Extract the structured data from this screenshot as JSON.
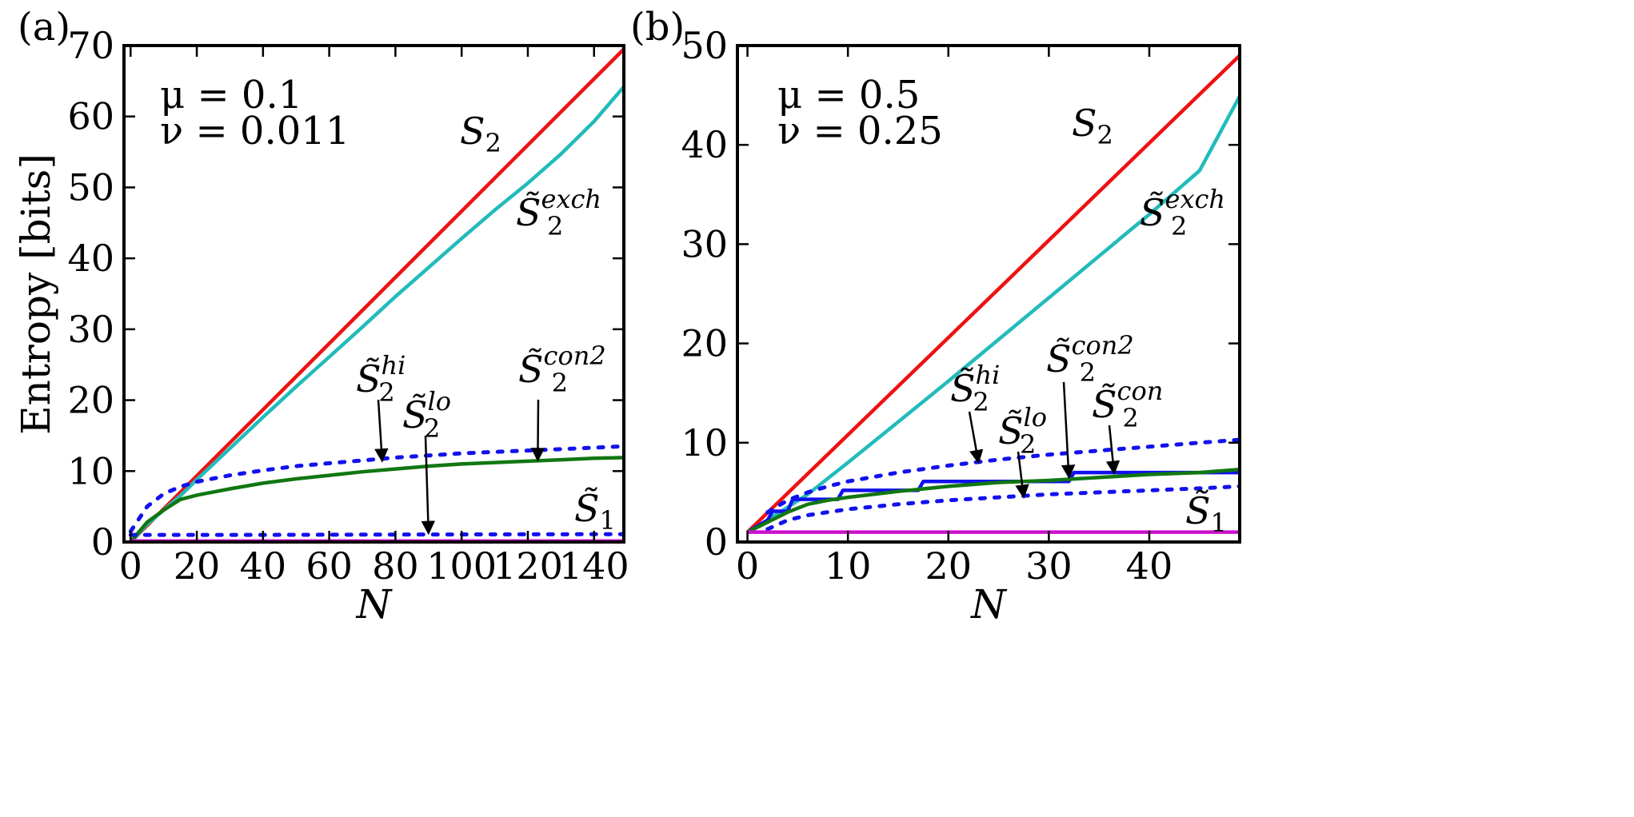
{
  "chart_data": [
    {
      "type": "line",
      "panel_label": "(a)",
      "params": [
        "μ = 0.1",
        "ν = 0.011"
      ],
      "xlabel": "N",
      "ylabel": "Entropy [bits]",
      "xlim": [
        -2,
        149
      ],
      "ylim": [
        0,
        70
      ],
      "xticks": [
        0,
        20,
        40,
        60,
        80,
        100,
        120,
        140
      ],
      "yticks": [
        0,
        10,
        20,
        30,
        40,
        50,
        60,
        70
      ],
      "series": [
        {
          "name": "S2",
          "color": "#ee1111",
          "style": "solid",
          "x": [
            0,
            149
          ],
          "y": [
            0,
            69.5
          ]
        },
        {
          "name": "S2 exch",
          "color": "#22bbbb",
          "style": "solid",
          "x": [
            0,
            5,
            10,
            15,
            20,
            30,
            40,
            50,
            60,
            70,
            80,
            90,
            100,
            110,
            120,
            130,
            140,
            149
          ],
          "y": [
            0,
            2.5,
            4.5,
            6.5,
            8.8,
            13.2,
            17.6,
            21.9,
            26.1,
            30.3,
            34.6,
            38.7,
            42.8,
            46.8,
            50.6,
            54.7,
            59.3,
            64.2
          ]
        },
        {
          "name": "S2 con2",
          "color": "#117711",
          "style": "solid",
          "x": [
            0,
            5,
            10,
            15,
            20,
            30,
            40,
            50,
            60,
            70,
            80,
            90,
            100,
            110,
            120,
            130,
            140,
            149
          ],
          "y": [
            0,
            2.8,
            4.5,
            6.0,
            6.6,
            7.5,
            8.3,
            8.9,
            9.4,
            9.9,
            10.3,
            10.7,
            11.0,
            11.2,
            11.4,
            11.6,
            11.8,
            11.9
          ]
        },
        {
          "name": "S2 hi",
          "color": "#1111ee",
          "style": "dotted",
          "x": [
            0,
            5,
            10,
            15,
            20,
            30,
            40,
            50,
            60,
            70,
            80,
            90,
            100,
            110,
            120,
            130,
            140,
            149
          ],
          "y": [
            1.5,
            5.0,
            6.8,
            7.8,
            8.5,
            9.4,
            10.1,
            10.7,
            11.1,
            11.5,
            11.9,
            12.2,
            12.5,
            12.7,
            12.9,
            13.1,
            13.3,
            13.5
          ]
        },
        {
          "name": "S2 lo",
          "color": "#1111ee",
          "style": "dotted",
          "x": [
            0,
            10,
            20,
            40,
            80,
            149
          ],
          "y": [
            1.0,
            1.0,
            1.0,
            1.0,
            1.05,
            1.1
          ]
        },
        {
          "name": "S1",
          "color": "#cc11cc",
          "style": "solid",
          "x": [
            0,
            149
          ],
          "y": [
            0.15,
            0.15
          ]
        }
      ],
      "annotations": [
        {
          "label": "S2",
          "decor": "",
          "sup": ""
        },
        {
          "label": "S",
          "decor": "~",
          "sup": "exch",
          "sub": "2"
        },
        {
          "label": "S",
          "decor": "~",
          "sup": "hi",
          "sub": "2",
          "arrow_to": [
            76,
            11.4
          ]
        },
        {
          "label": "S",
          "decor": "~",
          "sup": "lo",
          "sub": "2",
          "arrow_to": [
            90,
            1.2
          ]
        },
        {
          "label": "S",
          "decor": "~",
          "sup": "con2",
          "sub": "2",
          "arrow_to": [
            123,
            11.5
          ]
        },
        {
          "label": "S",
          "decor": "~",
          "sup": "",
          "sub": "1"
        }
      ]
    },
    {
      "type": "line",
      "panel_label": "(b)",
      "params": [
        "μ = 0.5",
        "ν = 0.25"
      ],
      "xlabel": "N",
      "ylabel": "",
      "xlim": [
        -1,
        49
      ],
      "ylim": [
        0,
        50
      ],
      "xticks": [
        0,
        10,
        20,
        30,
        40
      ],
      "yticks": [
        0,
        10,
        20,
        30,
        40,
        50
      ],
      "series": [
        {
          "name": "S2",
          "color": "#ee1111",
          "style": "solid",
          "x": [
            0,
            49
          ],
          "y": [
            1,
            49
          ]
        },
        {
          "name": "S2 exch",
          "color": "#22bbbb",
          "style": "solid",
          "x": [
            0,
            2,
            4,
            6,
            8,
            10,
            15,
            20,
            25,
            30,
            35,
            40,
            45,
            49
          ],
          "y": [
            1,
            2.2,
            3.5,
            4.8,
            6.4,
            8.0,
            12.1,
            16.2,
            20.4,
            24.6,
            28.8,
            33.0,
            37.4,
            44.9
          ]
        },
        {
          "name": "S2 con (blue)",
          "color": "#1111ee",
          "style": "solid",
          "x": [
            0,
            2,
            2.5,
            4,
            4.5,
            9,
            9.5,
            17,
            17.5,
            32,
            32.5,
            49
          ],
          "y": [
            1,
            2.2,
            3.1,
            3.1,
            4.3,
            4.3,
            5.2,
            5.2,
            6.1,
            6.1,
            7.0,
            7.0
          ]
        },
        {
          "name": "S2 con2",
          "color": "#117711",
          "style": "solid",
          "x": [
            0,
            2,
            4,
            6,
            8,
            10,
            15,
            20,
            25,
            30,
            35,
            40,
            45,
            49
          ],
          "y": [
            1,
            2.0,
            3.0,
            3.8,
            4.2,
            4.5,
            5.1,
            5.6,
            6.0,
            6.2,
            6.5,
            6.8,
            7.0,
            7.3
          ]
        },
        {
          "name": "S2 hi",
          "color": "#1111ee",
          "style": "dotted",
          "x": [
            2,
            4,
            6,
            8,
            10,
            15,
            20,
            25,
            30,
            35,
            40,
            45,
            49
          ],
          "y": [
            3.0,
            4.2,
            5.0,
            5.6,
            6.1,
            7.0,
            7.7,
            8.3,
            8.8,
            9.2,
            9.6,
            10.0,
            10.3
          ]
        },
        {
          "name": "S2 lo",
          "color": "#1111ee",
          "style": "dotted",
          "x": [
            2,
            4,
            6,
            8,
            10,
            15,
            20,
            25,
            30,
            35,
            40,
            45,
            49
          ],
          "y": [
            1.3,
            2.2,
            2.7,
            3.0,
            3.3,
            3.8,
            4.2,
            4.5,
            4.8,
            5.0,
            5.2,
            5.4,
            5.6
          ]
        },
        {
          "name": "S1",
          "color": "#cc11cc",
          "style": "solid",
          "x": [
            0,
            49
          ],
          "y": [
            1,
            1
          ]
        }
      ],
      "annotations": [
        {
          "label": "S2",
          "decor": "",
          "sup": ""
        },
        {
          "label": "S",
          "decor": "~",
          "sup": "exch",
          "sub": "2"
        },
        {
          "label": "S",
          "decor": "~",
          "sup": "hi",
          "sub": "2",
          "arrow_to": [
            23,
            8.0
          ]
        },
        {
          "label": "S",
          "decor": "~",
          "sup": "lo",
          "sub": "2",
          "arrow_to": [
            27.5,
            4.5
          ]
        },
        {
          "label": "S",
          "decor": "~",
          "sup": "con2",
          "sub": "2",
          "arrow_to": [
            32,
            6.5
          ]
        },
        {
          "label": "S",
          "decor": "~",
          "sup": "con",
          "sub": "2",
          "arrow_to": [
            36.5,
            6.9
          ]
        },
        {
          "label": "S",
          "decor": "~",
          "sup": "",
          "sub": "1"
        }
      ]
    }
  ]
}
